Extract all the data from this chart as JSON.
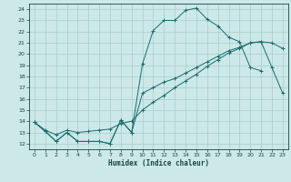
{
  "title": "",
  "xlabel": "Humidex (Indice chaleur)",
  "bg_color": "#cce8e8",
  "grid_color": "#aacccc",
  "line_color": "#1a6b6b",
  "xlim": [
    -0.5,
    23.5
  ],
  "ylim": [
    11.5,
    24.5
  ],
  "xticks": [
    0,
    1,
    2,
    3,
    4,
    5,
    6,
    7,
    8,
    9,
    10,
    11,
    12,
    13,
    14,
    15,
    16,
    17,
    18,
    19,
    20,
    21,
    22,
    23
  ],
  "yticks": [
    12,
    13,
    14,
    15,
    16,
    17,
    18,
    19,
    20,
    21,
    22,
    23,
    24
  ],
  "series1_x": [
    0,
    1,
    2,
    3,
    4,
    5,
    6,
    7,
    8,
    9,
    10,
    11,
    12,
    13,
    14,
    15,
    16,
    17,
    18,
    19,
    20,
    21
  ],
  "series1_y": [
    13.9,
    13.1,
    12.2,
    13.0,
    12.2,
    12.2,
    12.2,
    12.0,
    14.1,
    13.0,
    19.1,
    22.1,
    23.0,
    23.0,
    23.9,
    24.1,
    23.1,
    22.5,
    21.5,
    21.1,
    18.8,
    18.5
  ],
  "series2_x": [
    0,
    1,
    2,
    3,
    4,
    5,
    6,
    7,
    8,
    9,
    10,
    11,
    12,
    13,
    14,
    15,
    16,
    17,
    18,
    19,
    20,
    21,
    22,
    23
  ],
  "series2_y": [
    13.9,
    13.2,
    12.8,
    13.2,
    13.0,
    13.1,
    13.2,
    13.3,
    13.8,
    14.0,
    15.0,
    15.7,
    16.3,
    17.0,
    17.6,
    18.2,
    18.9,
    19.5,
    20.1,
    20.5,
    21.0,
    21.1,
    21.0,
    20.5
  ],
  "series3_x": [
    0,
    1,
    2,
    3,
    4,
    5,
    6,
    7,
    8,
    9,
    10,
    11,
    12,
    13,
    14,
    15,
    16,
    17,
    18,
    19,
    20,
    21,
    22,
    23
  ],
  "series3_y": [
    13.9,
    13.1,
    12.2,
    13.0,
    12.2,
    12.2,
    12.2,
    12.0,
    14.1,
    13.0,
    16.5,
    17.0,
    17.5,
    17.8,
    18.3,
    18.8,
    19.3,
    19.8,
    20.3,
    20.6,
    21.0,
    21.1,
    18.8,
    16.5
  ]
}
